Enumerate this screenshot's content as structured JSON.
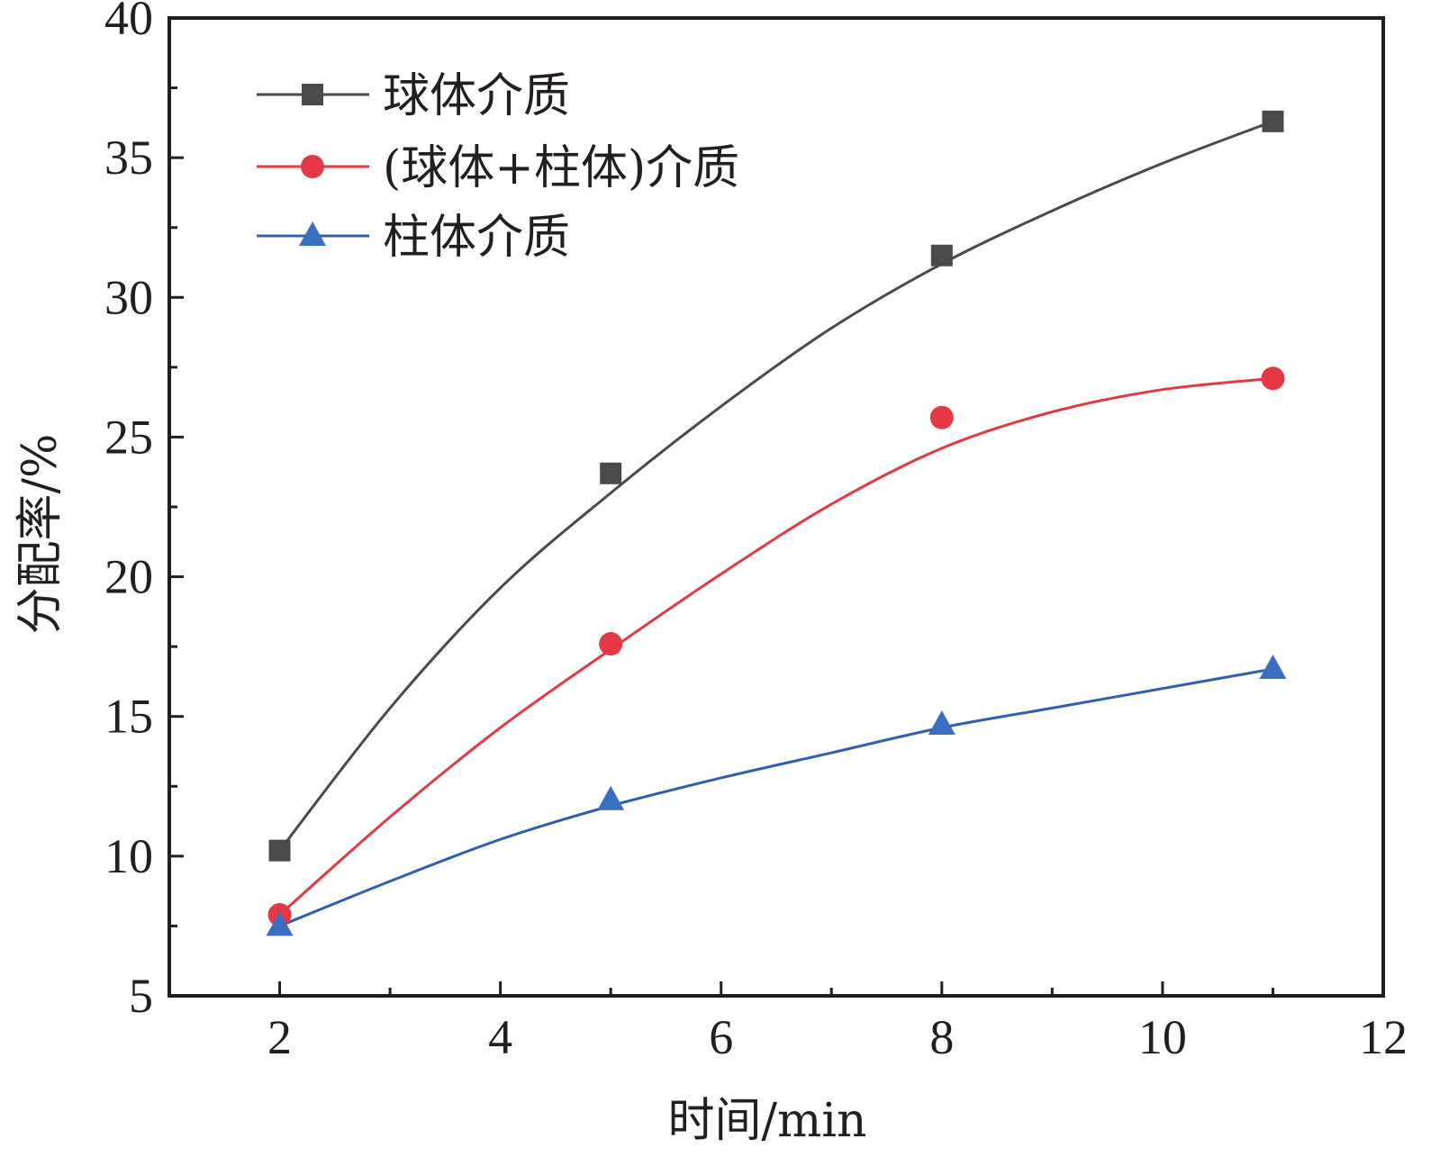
{
  "chart_data": {
    "type": "line",
    "xlabel": "时间/min",
    "ylabel": "分配率/%",
    "xlim": [
      1,
      12
    ],
    "ylim": [
      5,
      40
    ],
    "xticks": [
      2,
      4,
      6,
      8,
      10,
      12
    ],
    "yticks": [
      5,
      10,
      15,
      20,
      25,
      30,
      35,
      40
    ],
    "grid": false,
    "legend_position": "top-left",
    "x": [
      2,
      5,
      8,
      11
    ],
    "series": [
      {
        "name": "球体介质",
        "marker": "square",
        "color": "#4a4a4a",
        "marker_color": "#4a4a4a",
        "values": [
          10.2,
          23.7,
          31.5,
          36.3
        ],
        "fit": [
          [
            2,
            10.2
          ],
          [
            3,
            15.3
          ],
          [
            4,
            19.6
          ],
          [
            5,
            23.0
          ],
          [
            6,
            26.1
          ],
          [
            7,
            28.9
          ],
          [
            8,
            31.2
          ],
          [
            9,
            33.1
          ],
          [
            10,
            34.8
          ],
          [
            11,
            36.3
          ]
        ]
      },
      {
        "name": "(球体+柱体)介质",
        "marker": "circle",
        "color": "#e03a45",
        "marker_color": "#e53845",
        "values": [
          7.9,
          17.6,
          25.7,
          27.1
        ],
        "fit": [
          [
            2,
            7.9
          ],
          [
            3,
            11.4
          ],
          [
            4,
            14.6
          ],
          [
            5,
            17.4
          ],
          [
            6,
            20.1
          ],
          [
            7,
            22.6
          ],
          [
            8,
            24.6
          ],
          [
            9,
            25.9
          ],
          [
            10,
            26.7
          ],
          [
            11,
            27.1
          ]
        ]
      },
      {
        "name": "柱体介质",
        "marker": "triangle",
        "color": "#2f5fae",
        "marker_color": "#3a6fbf",
        "values": [
          7.5,
          12.0,
          14.7,
          16.7
        ],
        "fit": [
          [
            2,
            7.5
          ],
          [
            3,
            9.1
          ],
          [
            4,
            10.6
          ],
          [
            5,
            11.8
          ],
          [
            6,
            12.8
          ],
          [
            7,
            13.7
          ],
          [
            8,
            14.6
          ],
          [
            9,
            15.3
          ],
          [
            10,
            16.0
          ],
          [
            11,
            16.7
          ]
        ]
      }
    ]
  }
}
